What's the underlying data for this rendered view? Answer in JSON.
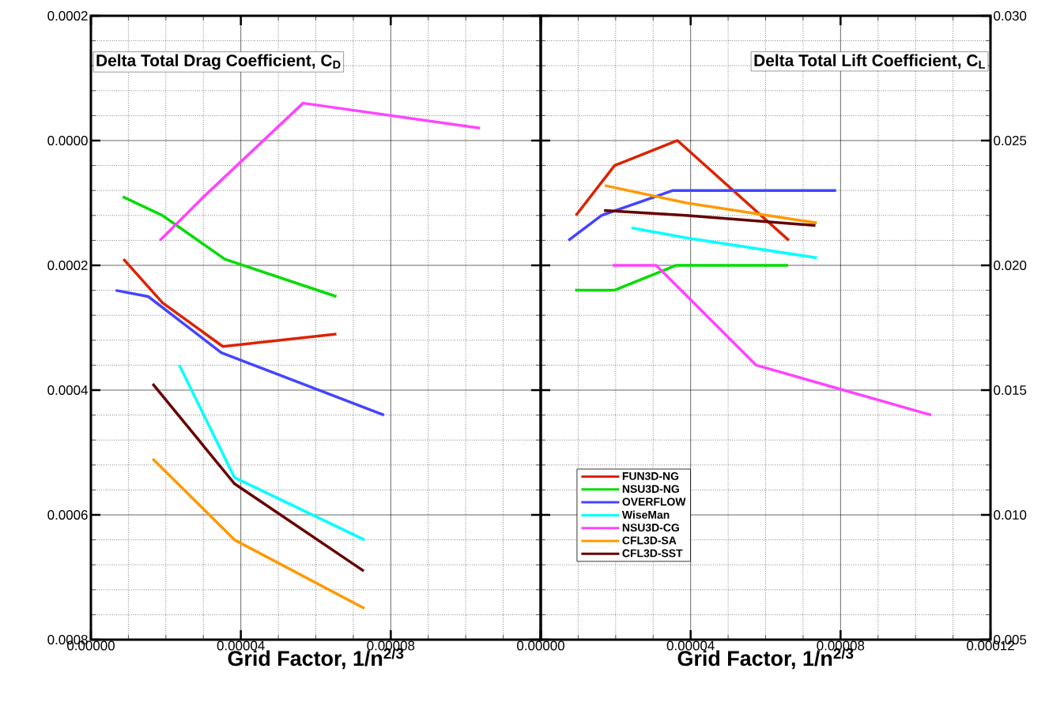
{
  "chart_data": [
    {
      "type": "line",
      "title": "Delta Total Drag Coefficient, C$_{D}$",
      "xlabel": "Grid Factor, 1/n$^{2/3}$",
      "xlim": [
        0,
        0.00012
      ],
      "ylim": [
        0.0008,
        -0.0002
      ],
      "xticks": [
        {
          "value": 0,
          "label": "0.00000"
        },
        {
          "value": 4e-05,
          "label": "0.00004"
        },
        {
          "value": 8e-05,
          "label": "0.00008"
        },
        {
          "value": 0.00012,
          "label": null
        }
      ],
      "yticks": [
        {
          "value": -0.0002,
          "label": "0.0002"
        },
        {
          "value": 0,
          "label": "0.0000"
        },
        {
          "value": 0.0002,
          "label": "0.0002"
        },
        {
          "value": 0.0004,
          "label": "0.0004"
        },
        {
          "value": 0.0006,
          "label": "0.0006"
        },
        {
          "value": 0.0008,
          "label": "0.0008"
        }
      ],
      "grid": true,
      "legend": false,
      "series": [
        {
          "color": "#dd2200",
          "x": [
            8.7e-06,
            1.91e-05,
            3.52e-05,
            6.55e-05
          ],
          "values": [
            0.00019,
            0.00026,
            0.00033,
            0.00031
          ]
        },
        {
          "color": "#00dd00",
          "x": [
            8.5e-06,
            1.91e-05,
            3.57e-05,
            6.55e-05
          ],
          "values": [
            9e-05,
            0.00012,
            0.00019,
            0.00025
          ]
        },
        {
          "color": "#4444ff",
          "x": [
            6.6e-06,
            1.53e-05,
            3.48e-05,
            7.82e-05
          ],
          "values": [
            0.00024,
            0.00025,
            0.00034,
            0.00044
          ]
        },
        {
          "color": "#00ffff",
          "x": [
            2.36e-05,
            3.83e-05,
            7.3e-05
          ],
          "values": [
            0.00036,
            0.00054,
            0.00064
          ]
        },
        {
          "color": "#ff44ff",
          "x": [
            1.84e-05,
            3.01e-05,
            5.66e-05,
            0.0001038
          ],
          "values": [
            0.00016,
            9e-05,
            -6e-05,
            -2e-05
          ]
        },
        {
          "color": "#ff9900",
          "x": [
            1.65e-05,
            3.83e-05,
            7.3e-05
          ],
          "values": [
            0.00051,
            0.00064,
            0.00075
          ]
        },
        {
          "color": "#660000",
          "x": [
            1.65e-05,
            3.83e-05,
            7.28e-05
          ],
          "values": [
            0.00039,
            0.00055,
            0.00069
          ]
        }
      ]
    },
    {
      "type": "line",
      "title": "Delta Total Lift Coefficient, C$_{L}$",
      "xlabel": "Grid Factor, 1/n$^{2/3}$",
      "xlim": [
        0,
        0.00012
      ],
      "ylim": [
        0.005,
        0.03
      ],
      "xticks": [
        {
          "value": 0,
          "label": "0.00000"
        },
        {
          "value": 4e-05,
          "label": "0.00004"
        },
        {
          "value": 8e-05,
          "label": "0.00008"
        },
        {
          "value": 0.00012,
          "label": "0.00012"
        }
      ],
      "yticks": [
        {
          "value": 0.005,
          "label": "0.005"
        },
        {
          "value": 0.01,
          "label": "0.010"
        },
        {
          "value": 0.015,
          "label": "0.015"
        },
        {
          "value": 0.02,
          "label": "0.020"
        },
        {
          "value": 0.025,
          "label": "0.025"
        },
        {
          "value": 0.03,
          "label": "0.030"
        }
      ],
      "grid": true,
      "legend": "bottom left",
      "series": [
        {
          "name": "FUN3D-NG",
          "color": "#dd2200",
          "x": [
            9.4e-06,
            1.97e-05,
            3.65e-05,
            6.62e-05
          ],
          "values": [
            0.022,
            0.024,
            0.025,
            0.021
          ]
        },
        {
          "name": "NSU3D-NG",
          "color": "#00dd00",
          "x": [
            9.2e-06,
            1.96e-05,
            3.62e-05,
            6.6e-05
          ],
          "values": [
            0.019,
            0.019,
            0.02,
            0.02
          ]
        },
        {
          "name": "OVERFLOW",
          "color": "#4444ff",
          "x": [
            7.4e-06,
            1.62e-05,
            3.53e-05,
            7.88e-05
          ],
          "values": [
            0.021,
            0.022,
            0.023,
            0.023
          ]
        },
        {
          "name": "WiseMan",
          "color": "#00ffff",
          "x": [
            2.42e-05,
            3.89e-05,
            7.37e-05
          ],
          "values": [
            0.0215,
            0.0211,
            0.0203
          ]
        },
        {
          "name": "NSU3D-CG",
          "color": "#ff44ff",
          "x": [
            1.92e-05,
            3.08e-05,
            5.75e-05,
            0.0001042
          ],
          "values": [
            0.02,
            0.02,
            0.016,
            0.014
          ]
        },
        {
          "name": "CFL3D-SA",
          "color": "#ff9900",
          "x": [
            1.71e-05,
            3.89e-05,
            7.37e-05
          ],
          "values": [
            0.0232,
            0.0225,
            0.0217
          ]
        },
        {
          "name": "CFL3D-SST",
          "color": "#660000",
          "x": [
            1.69e-05,
            3.87e-05,
            7.33e-05
          ],
          "values": [
            0.0222,
            0.022,
            0.0216
          ]
        }
      ]
    }
  ]
}
